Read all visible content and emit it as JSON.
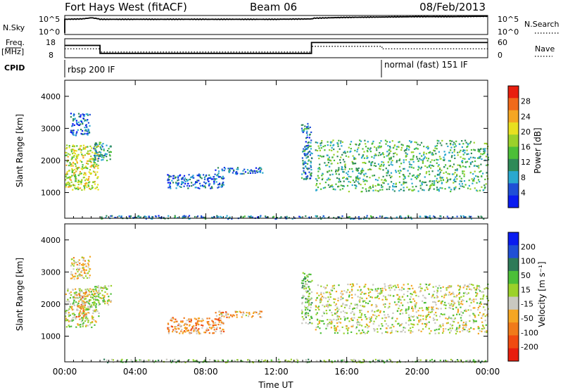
{
  "header": {
    "station": "Fort Hays West (fitACF)",
    "beam": "Beam 06",
    "date": "08/Feb/2013"
  },
  "chart_data": [
    {
      "type": "line",
      "panel": "noise",
      "left_label": "N.Sky",
      "right_label": "N.Search",
      "left_ticks": [
        "10^5",
        "10^0"
      ],
      "right_ticks": [
        "10^5",
        "10^0"
      ],
      "x": [
        "00:00",
        "01:00",
        "01:30",
        "01:50",
        "02:00",
        "04:00",
        "06:00",
        "08:00",
        "10:00",
        "12:00",
        "14:00",
        "14:10",
        "16:00",
        "18:00",
        "20:00",
        "22:00",
        "24:00"
      ],
      "series": [
        {
          "values": [
            4.0,
            4.1,
            4.4,
            4.2,
            4.0,
            4.0,
            4.0,
            4.0,
            4.0,
            4.0,
            4.1,
            4.3,
            4.5,
            4.6,
            4.7,
            4.7,
            4.8
          ]
        }
      ]
    },
    {
      "type": "line",
      "panel": "frequency",
      "left_label": "Freq.",
      "left_unit": "[MHz]",
      "right_label": "Nave",
      "left_ticks": [
        18,
        8
      ],
      "right_ticks": [
        60,
        0
      ],
      "series": [
        {
          "name": "Freq.",
          "steps": [
            [
              "00:00",
              14.5
            ],
            [
              "02:00",
              10.3
            ],
            [
              "14:00",
              16.0
            ],
            [
              "24:00",
              16.0
            ]
          ]
        },
        {
          "name": "Nave",
          "style": "dotted",
          "steps": [
            [
              "00:00",
              28
            ],
            [
              "02:00",
              18
            ],
            [
              "14:00",
              36
            ],
            [
              "18:00",
              28
            ],
            [
              "24:00",
              28
            ]
          ]
        }
      ]
    },
    {
      "type": "table",
      "panel": "cpid",
      "label": "CPID",
      "segments": [
        {
          "start": "00:00",
          "end": "18:00",
          "name": "rbsp 200 IF"
        },
        {
          "start": "18:00",
          "end": "24:00",
          "name": "normal (fast) 151 IF"
        }
      ]
    },
    {
      "type": "heatmap",
      "panel": "power",
      "ylabel": "Slant Range [km]",
      "yticks": [
        1000,
        2000,
        3000,
        4000
      ],
      "ylim": [
        200,
        4500
      ],
      "colorbar_label": "Power [dB]",
      "colorbar_ticks": [
        4,
        8,
        12,
        16,
        20,
        24,
        28
      ],
      "colorscale": [
        "#0a1cf0",
        "#1f4fd6",
        "#2aa8cf",
        "#2f8a58",
        "#4cbf38",
        "#9bd12a",
        "#e8e020",
        "#f5a623",
        "#f06a1a",
        "#e81e0e"
      ],
      "scatter_regions": [
        {
          "t0": 0.0,
          "t1": 1.9,
          "r0": 1100,
          "r1": 2500,
          "value": 18
        },
        {
          "t0": 0.3,
          "t1": 1.4,
          "r0": 2800,
          "r1": 3500,
          "value": 6
        },
        {
          "t0": 1.6,
          "t1": 2.6,
          "r0": 2000,
          "r1": 2600,
          "value": 10
        },
        {
          "t0": 5.8,
          "t1": 9.0,
          "r0": 1150,
          "r1": 1600,
          "value": 6
        },
        {
          "t0": 8.5,
          "t1": 11.2,
          "r0": 1600,
          "r1": 1800,
          "value": 6
        },
        {
          "t0": 13.4,
          "t1": 14.0,
          "r0": 1400,
          "r1": 3200,
          "value": 8
        },
        {
          "t0": 14.2,
          "t1": 24.0,
          "r0": 1050,
          "r1": 2650,
          "value": 12
        },
        {
          "t0": 2.0,
          "t1": 24.0,
          "r0": 200,
          "r1": 300,
          "value": 8
        }
      ]
    },
    {
      "type": "heatmap",
      "panel": "velocity",
      "ylabel": "Slant Range [km]",
      "yticks": [
        1000,
        2000,
        3000,
        4000
      ],
      "ylim": [
        200,
        4500
      ],
      "colorbar_label": "Velocity [m s⁻¹]",
      "colorbar_ticks": [
        200,
        100,
        50,
        15,
        -15,
        -50,
        -100,
        -200
      ],
      "colorscale": [
        "#0a1cf0",
        "#1f4fd6",
        "#2e7a58",
        "#4cbf38",
        "#9bd12a",
        "#c9c8c0",
        "#f5a623",
        "#f07a1a",
        "#f04a10",
        "#e81e0e"
      ],
      "scatter_regions": [
        {
          "t0": 0.0,
          "t1": 1.9,
          "r0": 1300,
          "r1": 2500,
          "value": 0
        },
        {
          "t0": 0.6,
          "t1": 1.2,
          "r0": 1600,
          "r1": 2400,
          "value": -60
        },
        {
          "t0": 0.3,
          "t1": 1.4,
          "r0": 2800,
          "r1": 3500,
          "value": -30
        },
        {
          "t0": 1.6,
          "t1": 2.6,
          "r0": 2000,
          "r1": 2600,
          "value": 0
        },
        {
          "t0": 5.8,
          "t1": 9.0,
          "r0": 1100,
          "r1": 1600,
          "value": -75
        },
        {
          "t0": 8.5,
          "t1": 11.2,
          "r0": 1600,
          "r1": 1800,
          "value": -60
        },
        {
          "t0": 13.4,
          "t1": 14.0,
          "r0": 1400,
          "r1": 3000,
          "value": 40
        },
        {
          "t0": 14.2,
          "t1": 24.0,
          "r0": 1100,
          "r1": 2650,
          "value": 0
        },
        {
          "t0": 2.0,
          "t1": 24.0,
          "r0": 200,
          "r1": 300,
          "value": 30
        }
      ]
    }
  ],
  "xaxis": {
    "label": "Time UT",
    "ticks": [
      "00:00",
      "04:00",
      "08:00",
      "12:00",
      "16:00",
      "20:00",
      "00:00"
    ],
    "range_hours": [
      0,
      24
    ]
  }
}
